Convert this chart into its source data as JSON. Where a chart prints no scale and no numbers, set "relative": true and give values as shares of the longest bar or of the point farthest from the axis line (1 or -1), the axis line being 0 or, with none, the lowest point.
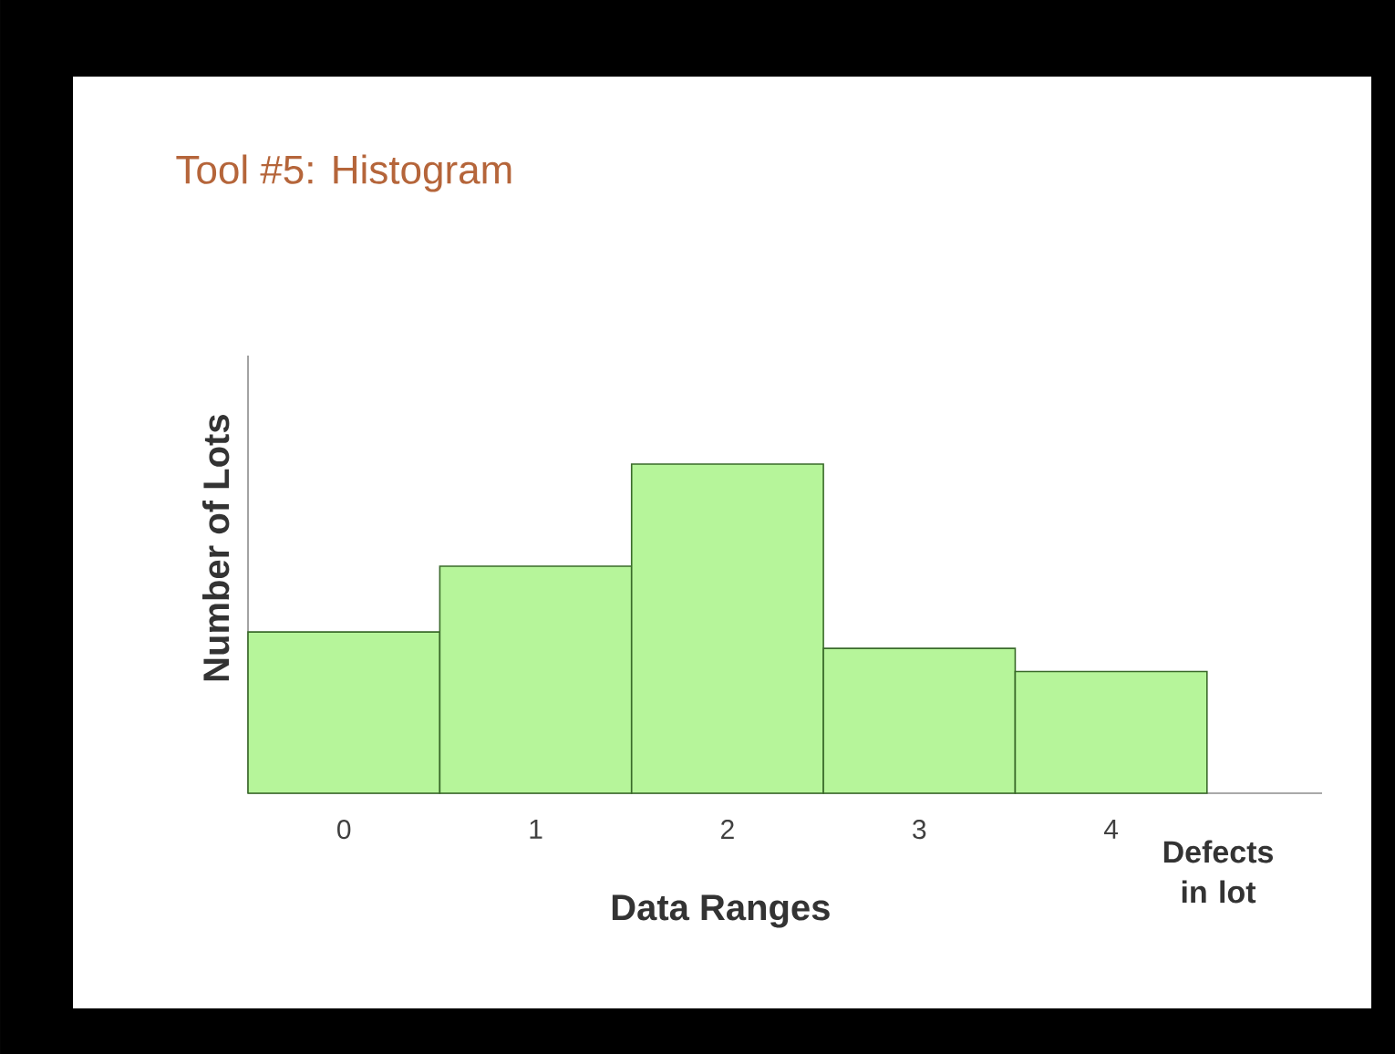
{
  "chart_data": {
    "type": "bar",
    "title": "Tool #5:  Histogram",
    "ylabel": "Number of Lots",
    "xlabel": "Data Ranges",
    "categories": [
      "0",
      "1",
      "2",
      "3",
      "4"
    ],
    "values": [
      0.49,
      0.69,
      1,
      0.44,
      0.37
    ],
    "color": "#b6f59a",
    "relative": true,
    "annotations": [
      "Defects in lot"
    ]
  }
}
